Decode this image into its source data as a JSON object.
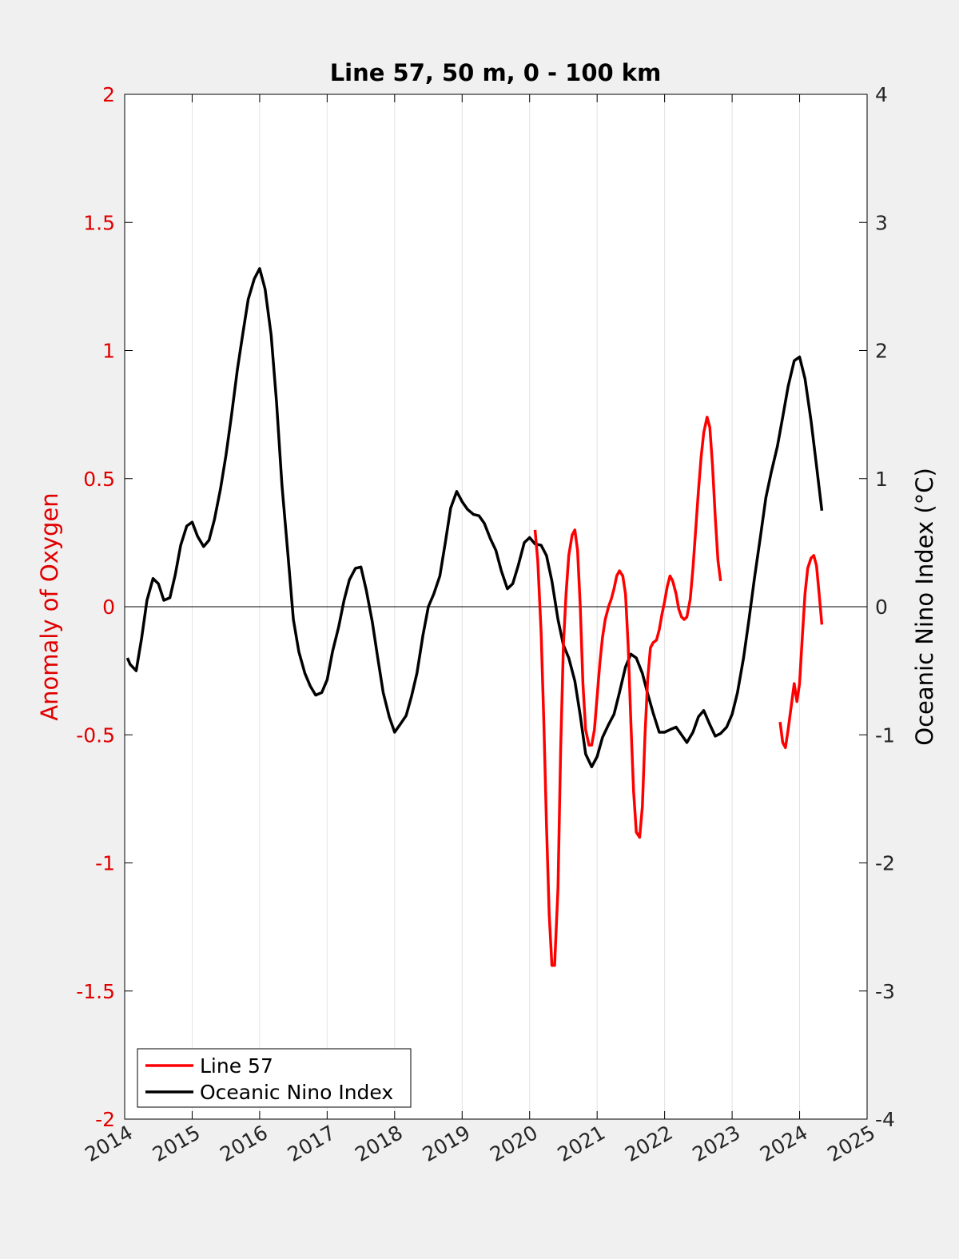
{
  "chart_data": {
    "type": "line",
    "title": "Line 57, 50 m, 0 - 100 km",
    "ylabel_left": "Anomaly of Oxygen",
    "ylabel_right": "Oceanic Nino Index (°C)",
    "xlim": [
      2014,
      2025
    ],
    "ylim_left": [
      -2,
      2
    ],
    "ylim_right": [
      -4,
      4
    ],
    "x_ticks": [
      "2014",
      "2015",
      "2016",
      "2017",
      "2018",
      "2019",
      "2020",
      "2021",
      "2022",
      "2023",
      "2024",
      "2025"
    ],
    "y_ticks_left": [
      "2",
      "1.5",
      "1",
      "0.5",
      "0",
      "-0.5",
      "-1",
      "-1.5",
      "-2"
    ],
    "y_ticks_right": [
      "4",
      "3",
      "2",
      "1",
      "0",
      "-1",
      "-2",
      "-3",
      "-4"
    ],
    "grid": "vertical",
    "zero_line": true,
    "legend_position": "bottom-left",
    "colors": {
      "line57": "#ff0000",
      "oni": "#000000",
      "left_axis": "#e00000"
    },
    "series": [
      {
        "name": "Line 57",
        "axis": "left",
        "segments": [
          [
            [
              2020.08,
              0.3
            ],
            [
              2020.12,
              0.18
            ],
            [
              2020.17,
              -0.1
            ],
            [
              2020.21,
              -0.45
            ],
            [
              2020.25,
              -0.85
            ],
            [
              2020.29,
              -1.2
            ],
            [
              2020.33,
              -1.4
            ],
            [
              2020.37,
              -1.4
            ],
            [
              2020.42,
              -1.1
            ],
            [
              2020.46,
              -0.55
            ],
            [
              2020.5,
              -0.15
            ],
            [
              2020.54,
              0.05
            ],
            [
              2020.58,
              0.2
            ],
            [
              2020.63,
              0.28
            ],
            [
              2020.67,
              0.3
            ],
            [
              2020.71,
              0.22
            ],
            [
              2020.75,
              0.0
            ],
            [
              2020.79,
              -0.3
            ],
            [
              2020.83,
              -0.48
            ],
            [
              2020.88,
              -0.54
            ],
            [
              2020.92,
              -0.54
            ],
            [
              2020.96,
              -0.48
            ],
            [
              2021.0,
              -0.35
            ],
            [
              2021.04,
              -0.22
            ],
            [
              2021.08,
              -0.12
            ],
            [
              2021.12,
              -0.05
            ],
            [
              2021.17,
              0.0
            ],
            [
              2021.21,
              0.03
            ],
            [
              2021.25,
              0.07
            ],
            [
              2021.29,
              0.12
            ],
            [
              2021.33,
              0.14
            ],
            [
              2021.38,
              0.12
            ],
            [
              2021.42,
              0.05
            ],
            [
              2021.46,
              -0.15
            ],
            [
              2021.5,
              -0.45
            ],
            [
              2021.54,
              -0.72
            ],
            [
              2021.58,
              -0.88
            ],
            [
              2021.63,
              -0.9
            ],
            [
              2021.67,
              -0.78
            ],
            [
              2021.71,
              -0.5
            ],
            [
              2021.75,
              -0.28
            ],
            [
              2021.79,
              -0.16
            ],
            [
              2021.83,
              -0.14
            ],
            [
              2021.88,
              -0.13
            ],
            [
              2021.92,
              -0.09
            ],
            [
              2021.96,
              -0.03
            ],
            [
              2022.0,
              0.02
            ],
            [
              2022.04,
              0.08
            ],
            [
              2022.08,
              0.12
            ],
            [
              2022.12,
              0.1
            ],
            [
              2022.17,
              0.05
            ],
            [
              2022.21,
              -0.01
            ],
            [
              2022.25,
              -0.04
            ],
            [
              2022.29,
              -0.05
            ],
            [
              2022.33,
              -0.04
            ],
            [
              2022.38,
              0.03
            ],
            [
              2022.42,
              0.15
            ],
            [
              2022.46,
              0.3
            ],
            [
              2022.5,
              0.45
            ],
            [
              2022.54,
              0.58
            ],
            [
              2022.58,
              0.68
            ],
            [
              2022.63,
              0.74
            ],
            [
              2022.67,
              0.7
            ],
            [
              2022.71,
              0.55
            ],
            [
              2022.75,
              0.35
            ],
            [
              2022.79,
              0.18
            ],
            [
              2022.83,
              0.1
            ]
          ],
          [
            [
              2023.71,
              -0.45
            ],
            [
              2023.75,
              -0.53
            ],
            [
              2023.79,
              -0.55
            ],
            [
              2023.83,
              -0.48
            ],
            [
              2023.88,
              -0.38
            ],
            [
              2023.92,
              -0.3
            ],
            [
              2023.96,
              -0.37
            ],
            [
              2024.0,
              -0.3
            ],
            [
              2024.04,
              -0.12
            ],
            [
              2024.08,
              0.05
            ],
            [
              2024.12,
              0.15
            ],
            [
              2024.17,
              0.19
            ],
            [
              2024.21,
              0.2
            ],
            [
              2024.25,
              0.16
            ],
            [
              2024.29,
              0.05
            ],
            [
              2024.33,
              -0.07
            ]
          ]
        ]
      },
      {
        "name": "Oceanic Nino Index",
        "axis": "right",
        "segments": [
          [
            [
              2014.04,
              -0.4
            ],
            [
              2014.08,
              -0.45
            ],
            [
              2014.17,
              -0.5
            ],
            [
              2014.25,
              -0.25
            ],
            [
              2014.33,
              0.05
            ],
            [
              2014.42,
              0.22
            ],
            [
              2014.5,
              0.18
            ],
            [
              2014.58,
              0.05
            ],
            [
              2014.67,
              0.07
            ],
            [
              2014.75,
              0.25
            ],
            [
              2014.83,
              0.48
            ],
            [
              2014.92,
              0.63
            ],
            [
              2015.0,
              0.66
            ],
            [
              2015.08,
              0.55
            ],
            [
              2015.17,
              0.47
            ],
            [
              2015.25,
              0.52
            ],
            [
              2015.33,
              0.68
            ],
            [
              2015.42,
              0.92
            ],
            [
              2015.5,
              1.18
            ],
            [
              2015.58,
              1.48
            ],
            [
              2015.67,
              1.85
            ],
            [
              2015.75,
              2.13
            ],
            [
              2015.83,
              2.4
            ],
            [
              2015.92,
              2.56
            ],
            [
              2016.0,
              2.64
            ],
            [
              2016.08,
              2.48
            ],
            [
              2016.17,
              2.12
            ],
            [
              2016.25,
              1.6
            ],
            [
              2016.33,
              0.95
            ],
            [
              2016.42,
              0.4
            ],
            [
              2016.5,
              -0.1
            ],
            [
              2016.58,
              -0.35
            ],
            [
              2016.67,
              -0.52
            ],
            [
              2016.75,
              -0.62
            ],
            [
              2016.83,
              -0.69
            ],
            [
              2016.92,
              -0.67
            ],
            [
              2017.0,
              -0.57
            ],
            [
              2017.08,
              -0.35
            ],
            [
              2017.17,
              -0.16
            ],
            [
              2017.25,
              0.05
            ],
            [
              2017.33,
              0.21
            ],
            [
              2017.42,
              0.3
            ],
            [
              2017.5,
              0.31
            ],
            [
              2017.58,
              0.13
            ],
            [
              2017.67,
              -0.12
            ],
            [
              2017.75,
              -0.4
            ],
            [
              2017.83,
              -0.67
            ],
            [
              2017.92,
              -0.86
            ],
            [
              2018.0,
              -0.98
            ],
            [
              2018.08,
              -0.92
            ],
            [
              2018.17,
              -0.85
            ],
            [
              2018.25,
              -0.7
            ],
            [
              2018.33,
              -0.52
            ],
            [
              2018.42,
              -0.22
            ],
            [
              2018.5,
              0.0
            ],
            [
              2018.58,
              0.1
            ],
            [
              2018.67,
              0.24
            ],
            [
              2018.75,
              0.5
            ],
            [
              2018.83,
              0.77
            ],
            [
              2018.92,
              0.9
            ],
            [
              2019.0,
              0.82
            ],
            [
              2019.08,
              0.76
            ],
            [
              2019.17,
              0.72
            ],
            [
              2019.25,
              0.71
            ],
            [
              2019.33,
              0.65
            ],
            [
              2019.42,
              0.53
            ],
            [
              2019.5,
              0.44
            ],
            [
              2019.58,
              0.28
            ],
            [
              2019.67,
              0.14
            ],
            [
              2019.75,
              0.18
            ],
            [
              2019.83,
              0.32
            ],
            [
              2019.92,
              0.5
            ],
            [
              2020.0,
              0.54
            ],
            [
              2020.08,
              0.49
            ],
            [
              2020.17,
              0.48
            ],
            [
              2020.25,
              0.4
            ],
            [
              2020.33,
              0.2
            ],
            [
              2020.42,
              -0.1
            ],
            [
              2020.5,
              -0.3
            ],
            [
              2020.58,
              -0.4
            ],
            [
              2020.67,
              -0.58
            ],
            [
              2020.75,
              -0.85
            ],
            [
              2020.83,
              -1.15
            ],
            [
              2020.92,
              -1.25
            ],
            [
              2021.0,
              -1.17
            ],
            [
              2021.08,
              -1.02
            ],
            [
              2021.17,
              -0.92
            ],
            [
              2021.25,
              -0.84
            ],
            [
              2021.33,
              -0.67
            ],
            [
              2021.42,
              -0.47
            ],
            [
              2021.5,
              -0.37
            ],
            [
              2021.58,
              -0.4
            ],
            [
              2021.67,
              -0.52
            ],
            [
              2021.75,
              -0.68
            ],
            [
              2021.83,
              -0.83
            ],
            [
              2021.92,
              -0.98
            ],
            [
              2022.0,
              -0.98
            ],
            [
              2022.08,
              -0.96
            ],
            [
              2022.17,
              -0.94
            ],
            [
              2022.25,
              -1.0
            ],
            [
              2022.33,
              -1.06
            ],
            [
              2022.42,
              -0.98
            ],
            [
              2022.5,
              -0.86
            ],
            [
              2022.58,
              -0.81
            ],
            [
              2022.67,
              -0.92
            ],
            [
              2022.75,
              -1.01
            ],
            [
              2022.83,
              -0.99
            ],
            [
              2022.92,
              -0.94
            ],
            [
              2023.0,
              -0.84
            ],
            [
              2023.08,
              -0.67
            ],
            [
              2023.17,
              -0.4
            ],
            [
              2023.25,
              -0.1
            ],
            [
              2023.33,
              0.22
            ],
            [
              2023.42,
              0.55
            ],
            [
              2023.5,
              0.85
            ],
            [
              2023.58,
              1.05
            ],
            [
              2023.67,
              1.25
            ],
            [
              2023.75,
              1.48
            ],
            [
              2023.83,
              1.72
            ],
            [
              2023.92,
              1.92
            ],
            [
              2024.0,
              1.95
            ],
            [
              2024.08,
              1.78
            ],
            [
              2024.17,
              1.45
            ],
            [
              2024.25,
              1.1
            ],
            [
              2024.33,
              0.75
            ]
          ]
        ]
      }
    ]
  }
}
